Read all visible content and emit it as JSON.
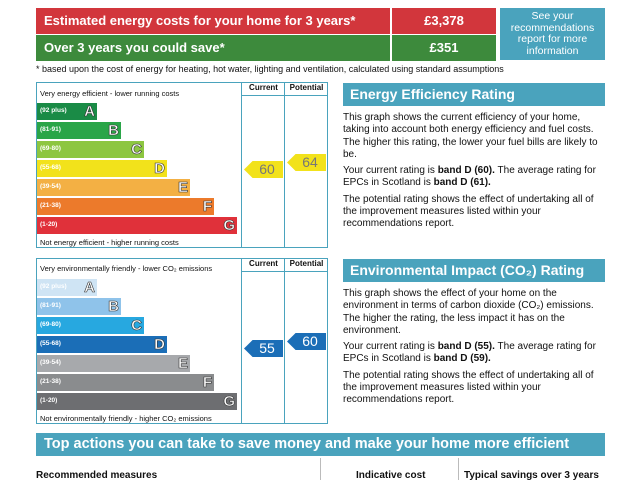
{
  "costs": {
    "estimated_label": "Estimated energy costs for your home for 3 years*",
    "estimated_value": "£3,378",
    "save_label": "Over 3 years you could save*",
    "save_value": "£351",
    "see_box": "See your recommendations report for more information",
    "footnote": "* based upon the cost of energy for heating, hot water, lighting and ventilation, calculated using standard assumptions"
  },
  "energy_chart": {
    "top_caption": "Very energy efficient - lower running costs",
    "bottom_caption": "Not energy efficient - higher running costs",
    "current_header": "Current",
    "potential_header": "Potential",
    "current_value": "60",
    "potential_value": "64",
    "bands": [
      {
        "range": "(92 plus)",
        "letter": "A",
        "color": "#1a8b46"
      },
      {
        "range": "(81-91)",
        "letter": "B",
        "color": "#2aa548"
      },
      {
        "range": "(69-80)",
        "letter": "C",
        "color": "#8dc641"
      },
      {
        "range": "(55-68)",
        "letter": "D",
        "color": "#f2e21b"
      },
      {
        "range": "(39-54)",
        "letter": "E",
        "color": "#f3b044"
      },
      {
        "range": "(21-38)",
        "letter": "F",
        "color": "#ec7a2b"
      },
      {
        "range": "(1-20)",
        "letter": "G",
        "color": "#e0313a"
      }
    ],
    "arrow_color": "#f2e21b"
  },
  "env_chart": {
    "top_caption": "Very environmentally friendly - lower CO₂ emissions",
    "bottom_caption": "Not environmentally friendly - higher CO₂ emissions",
    "current_header": "Current",
    "potential_header": "Potential",
    "current_value": "55",
    "potential_value": "60",
    "bands": [
      {
        "range": "(92 plus)",
        "letter": "A",
        "color": "#cfe4f4"
      },
      {
        "range": "(81-91)",
        "letter": "B",
        "color": "#8fc3ea"
      },
      {
        "range": "(69-80)",
        "letter": "C",
        "color": "#27a8e0"
      },
      {
        "range": "(55-68)",
        "letter": "D",
        "color": "#1b6eb7"
      },
      {
        "range": "(39-54)",
        "letter": "E",
        "color": "#a7a9ac"
      },
      {
        "range": "(21-38)",
        "letter": "F",
        "color": "#8a8c8e"
      },
      {
        "range": "(1-20)",
        "letter": "G",
        "color": "#6d6e71"
      }
    ],
    "arrow_color": "#1b6eb7"
  },
  "energy_panel": {
    "title": "Energy Efficiency Rating",
    "p1": "This graph shows the current efficiency of your home, taking into account both energy efficiency and fuel costs. The higher this rating, the lower your fuel bills are likely to be.",
    "p2_a": "Your current rating is ",
    "p2_b": "band D (60).",
    "p2_c": " The average rating for EPCs in Scotland is ",
    "p2_d": "band D (61).",
    "p3": "The potential rating shows the effect of undertaking all of the improvement measures listed within your recommendations report."
  },
  "env_panel": {
    "title": "Environmental Impact (CO₂) Rating",
    "p1": "This graph shows the effect of your home on the environment in terms of carbon dioxide (CO₂) emissions. The higher the rating, the less impact it has on the environment.",
    "p2_a": "Your current rating is ",
    "p2_b": "band D (55).",
    "p2_c": " The average rating for EPCs in Scotland is ",
    "p2_d": "band D (59).",
    "p3": "The potential rating shows the effect of undertaking all of the improvement measures listed within your recommendations report."
  },
  "actions": {
    "banner": "Top actions you can take to save money and make your home more efficient",
    "col_measures": "Recommended measures",
    "col_cost": "Indicative cost",
    "col_savings": "Typical savings over 3 years"
  }
}
